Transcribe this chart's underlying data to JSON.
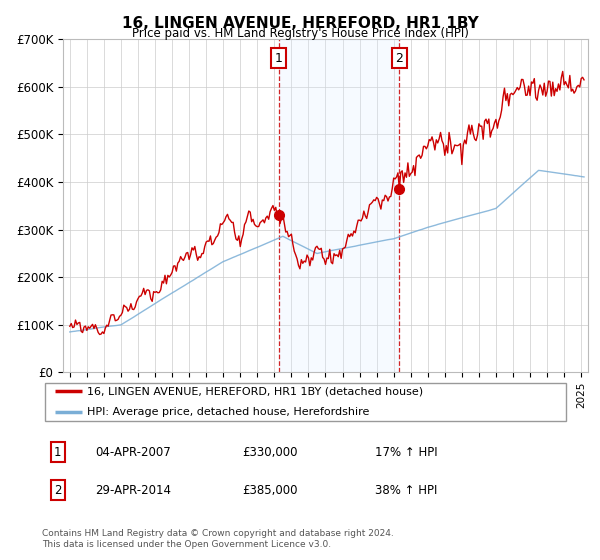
{
  "title": "16, LINGEN AVENUE, HEREFORD, HR1 1BY",
  "subtitle": "Price paid vs. HM Land Registry's House Price Index (HPI)",
  "legend_line1": "16, LINGEN AVENUE, HEREFORD, HR1 1BY (detached house)",
  "legend_line2": "HPI: Average price, detached house, Herefordshire",
  "sale1_label": "1",
  "sale1_date": "04-APR-2007",
  "sale1_price": "£330,000",
  "sale1_hpi": "17% ↑ HPI",
  "sale1_year": 2007.25,
  "sale1_value": 330000,
  "sale2_label": "2",
  "sale2_date": "29-APR-2014",
  "sale2_price": "£385,000",
  "sale2_hpi": "38% ↑ HPI",
  "sale2_year": 2014.33,
  "sale2_value": 385000,
  "footer": "Contains HM Land Registry data © Crown copyright and database right 2024.\nThis data is licensed under the Open Government Licence v3.0.",
  "red_color": "#cc0000",
  "blue_color": "#7aaed6",
  "shade_color": "#ddeeff",
  "ymax": 700000,
  "ymin": 0
}
